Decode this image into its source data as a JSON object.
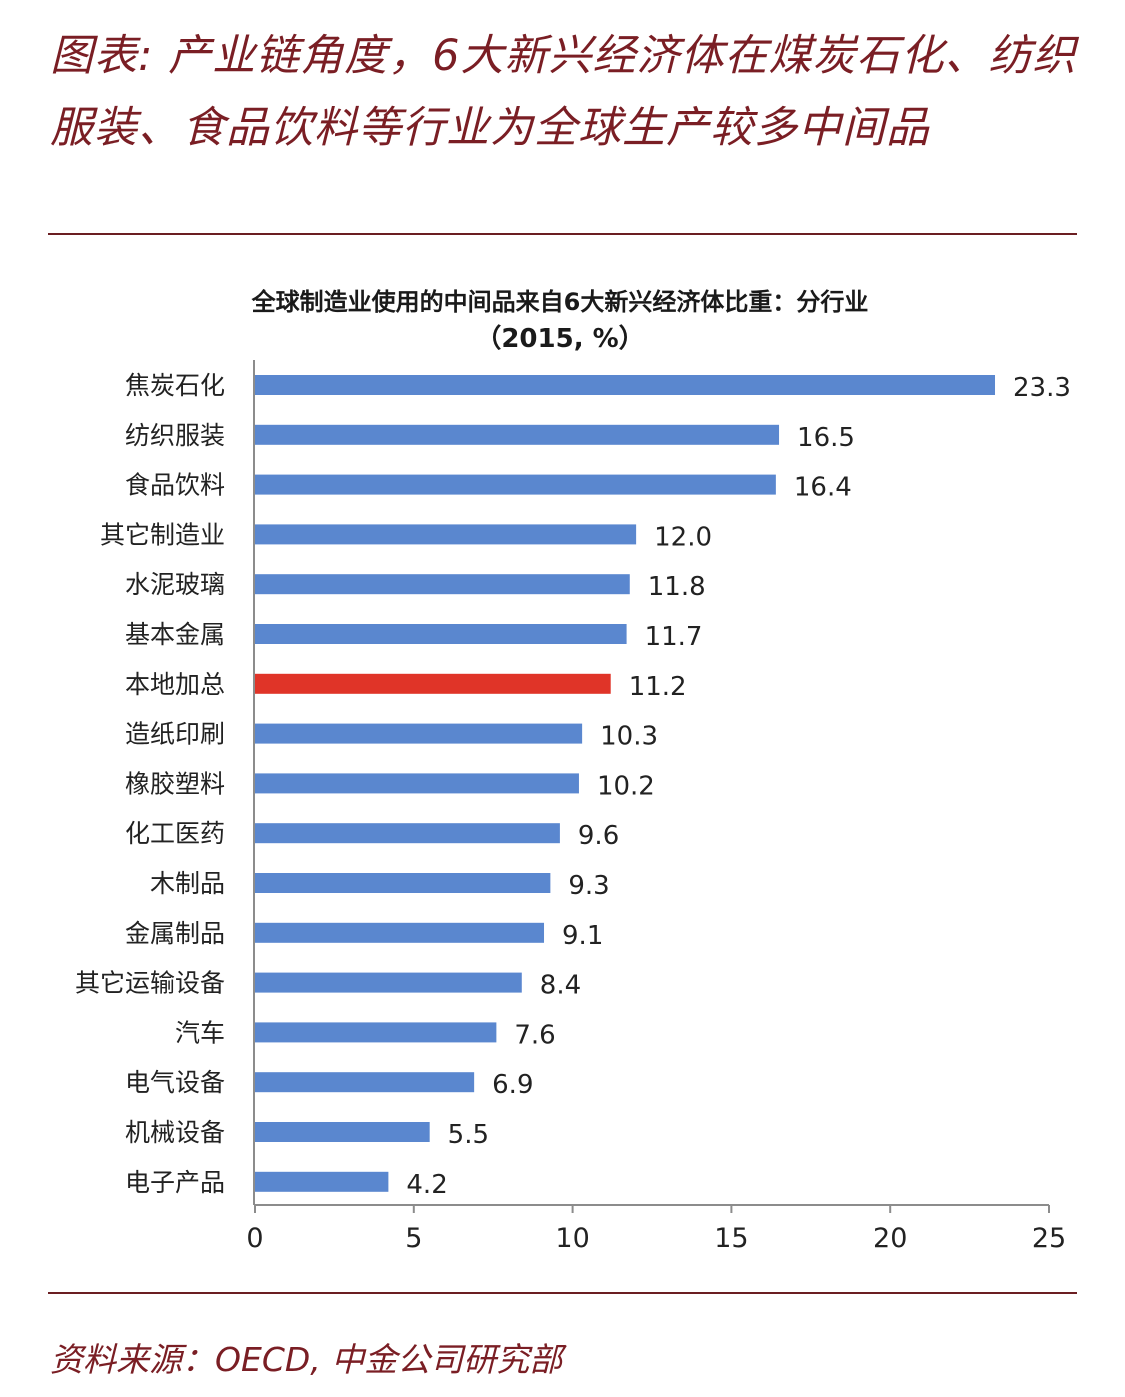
{
  "figure": {
    "title": "图表: 产业链角度，6大新兴经济体在煤炭石化、纺织服装、食品饮料等行业为全球生产较多中间品",
    "source": "资料来源：OECD, 中金公司研究部"
  },
  "colors": {
    "accent": "#7a1e24",
    "bar": "#5a87cf",
    "highlight_bar": "#e03428",
    "axis": "#8c8c8c"
  },
  "chart_data": {
    "type": "bar",
    "orientation": "horizontal",
    "title": "全球制造业使用的中间品来自6大新兴经济体比重：分行业",
    "subtitle": "（2015, %）",
    "categories": [
      "焦炭石化",
      "纺织服装",
      "食品饮料",
      "其它制造业",
      "水泥玻璃",
      "基本金属",
      "本地加总",
      "造纸印刷",
      "橡胶塑料",
      "化工医药",
      "木制品",
      "金属制品",
      "其它运输设备",
      "汽车",
      "电气设备",
      "机械设备",
      "电子产品"
    ],
    "values": [
      23.3,
      16.5,
      16.4,
      12.0,
      11.8,
      11.7,
      11.2,
      10.3,
      10.2,
      9.6,
      9.3,
      9.1,
      8.4,
      7.6,
      6.9,
      5.5,
      4.2
    ],
    "value_labels": [
      "23.3",
      "16.5",
      "16.4",
      "12.0",
      "11.8",
      "11.7",
      "11.2",
      "10.3",
      "10.2",
      "9.6",
      "9.3",
      "9.1",
      "8.4",
      "7.6",
      "6.9",
      "5.5",
      "4.2"
    ],
    "highlight": "本地加总",
    "xlim": [
      0,
      25
    ],
    "xticks": [
      0,
      5,
      10,
      15,
      20,
      25
    ],
    "xlabel": "",
    "ylabel": "",
    "grid": false,
    "legend": "none"
  }
}
